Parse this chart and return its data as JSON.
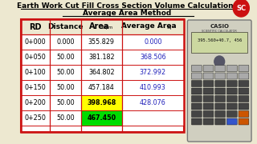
{
  "title_line1": "Earth Work Cut Fill Cross Section Volume Calculations",
  "title_line2": "Average Area Method",
  "bg_color": "#ede8d0",
  "headers": [
    "RD",
    "Distance",
    "Area Sq.m",
    "Average Area sq"
  ],
  "rows": [
    {
      "rd": "0+000",
      "dist": "0.000",
      "area": "355.829",
      "avg_area": "0.000",
      "area_bg": null,
      "avg_blue": true
    },
    {
      "rd": "0+050",
      "dist": "50.00",
      "area": "381.182",
      "avg_area": "368.506",
      "area_bg": null,
      "avg_blue": true
    },
    {
      "rd": "0+100",
      "dist": "50.00",
      "area": "364.802",
      "avg_area": "372.992",
      "area_bg": null,
      "avg_blue": true
    },
    {
      "rd": "0+150",
      "dist": "50.00",
      "area": "457.184",
      "avg_area": "410.993",
      "area_bg": null,
      "avg_blue": true
    },
    {
      "rd": "0+200",
      "dist": "50.00",
      "area": "398.968",
      "avg_area": "428.076",
      "area_bg": "#ffff00",
      "avg_blue": true
    },
    {
      "rd": "0+250",
      "dist": "50.00",
      "area": "467.450",
      "avg_area": "",
      "area_bg": "#00dd00",
      "avg_blue": false
    }
  ],
  "border_color": "#cc1111",
  "header_bg": "#ede8d0",
  "blue_color": "#2222bb",
  "calc_display": "395.560+40.7, 456",
  "logo_bg": "#cc1111",
  "logo_text": "SC"
}
